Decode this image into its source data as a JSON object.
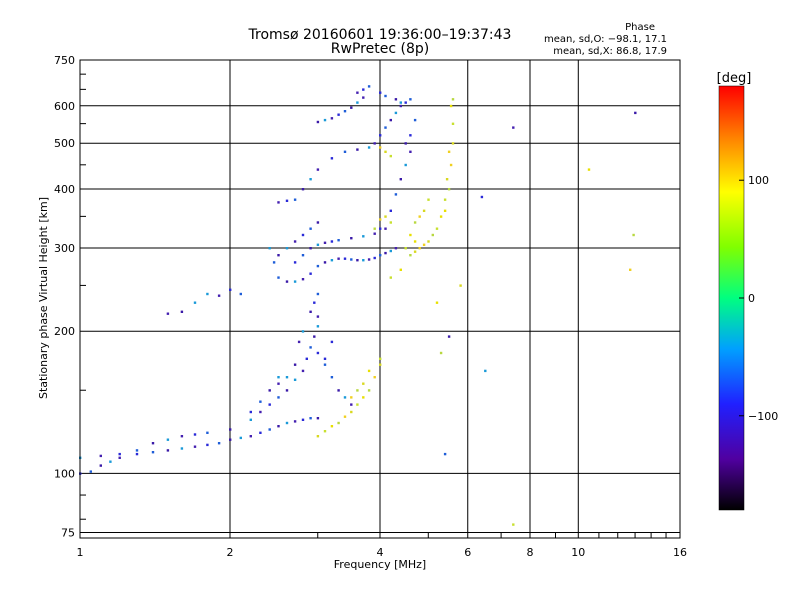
{
  "chart_data": {
    "type": "scatter",
    "title": "Tromsø 20160601 19:36:00–19:37:43",
    "subtitle": "RwPretec (8p)",
    "xlabel": "Frequency [MHz]",
    "ylabel": "Stationary phase Virtual Height [km]",
    "xscale": "log",
    "yscale": "log",
    "xlim": [
      1,
      16
    ],
    "ylim": [
      73,
      750
    ],
    "x_ticks": [
      1,
      2,
      4,
      6,
      8,
      10,
      16
    ],
    "x_tick_labels": [
      "1",
      "2",
      "4",
      "6",
      "8",
      "10",
      "16"
    ],
    "y_ticks": [
      75,
      100,
      200,
      300,
      400,
      500,
      600,
      750
    ],
    "y_tick_labels": [
      "75",
      "100",
      "200",
      "300",
      "400",
      "500",
      "600",
      "750"
    ],
    "grid": true,
    "stats": {
      "heading": "Phase",
      "line_O": "mean, sd,O: −98.1, 17.1",
      "line_X": "mean, sd,X:  86.8, 17.9"
    },
    "colorbar": {
      "label": "[deg]",
      "range": [
        -180,
        180
      ],
      "ticks": [
        100,
        0,
        -100
      ],
      "tick_labels": [
        "100",
        "0",
        "−100"
      ]
    },
    "series": [
      {
        "points": [
          [
            1.0,
            100
          ],
          [
            1.05,
            101
          ],
          [
            1.1,
            104
          ],
          [
            1.15,
            106
          ],
          [
            1.2,
            108
          ],
          [
            1.3,
            110
          ],
          [
            1.4,
            111
          ],
          [
            1.5,
            112
          ],
          [
            1.6,
            113
          ],
          [
            1.7,
            114
          ],
          [
            1.8,
            115
          ],
          [
            1.9,
            116
          ],
          [
            2.0,
            118
          ],
          [
            2.1,
            119
          ],
          [
            2.2,
            120
          ],
          [
            2.3,
            122
          ],
          [
            2.4,
            124
          ],
          [
            2.5,
            126
          ],
          [
            2.6,
            128
          ],
          [
            2.7,
            129
          ],
          [
            2.8,
            130
          ],
          [
            2.9,
            131
          ],
          [
            3.0,
            131
          ],
          [
            1.0,
            108
          ],
          [
            1.1,
            109
          ],
          [
            1.2,
            110
          ],
          [
            1.3,
            112
          ],
          [
            1.4,
            116
          ],
          [
            1.5,
            118
          ],
          [
            1.6,
            120
          ],
          [
            1.7,
            121
          ],
          [
            1.8,
            122
          ],
          [
            2.0,
            124
          ],
          [
            2.2,
            130
          ],
          [
            2.3,
            135
          ],
          [
            2.4,
            140
          ],
          [
            2.5,
            145
          ],
          [
            2.6,
            150
          ],
          [
            2.7,
            158
          ],
          [
            2.8,
            165
          ],
          [
            2.85,
            175
          ],
          [
            2.9,
            185
          ],
          [
            2.95,
            195
          ],
          [
            3.0,
            205
          ],
          [
            3.0,
            215
          ],
          [
            2.95,
            230
          ],
          [
            3.0,
            240
          ],
          [
            2.9,
            220
          ],
          [
            2.8,
            200
          ],
          [
            2.75,
            190
          ],
          [
            3.1,
            175
          ],
          [
            3.2,
            160
          ],
          [
            3.3,
            150
          ],
          [
            3.4,
            145
          ],
          [
            3.5,
            140
          ],
          [
            3.2,
            190
          ],
          [
            3.1,
            170
          ],
          [
            2.7,
            170
          ],
          [
            2.6,
            160
          ],
          [
            2.5,
            155
          ],
          [
            3.0,
            180
          ],
          [
            2.5,
            260
          ],
          [
            2.6,
            255
          ],
          [
            2.7,
            255
          ],
          [
            2.8,
            258
          ],
          [
            2.9,
            265
          ],
          [
            3.0,
            275
          ],
          [
            3.1,
            280
          ],
          [
            3.2,
            283
          ],
          [
            3.3,
            285
          ],
          [
            3.4,
            285
          ],
          [
            3.5,
            284
          ],
          [
            3.6,
            283
          ],
          [
            3.7,
            283
          ],
          [
            3.8,
            284
          ],
          [
            3.9,
            286
          ],
          [
            4.0,
            290
          ],
          [
            4.1,
            293
          ],
          [
            4.2,
            296
          ],
          [
            4.3,
            300
          ],
          [
            2.7,
            280
          ],
          [
            2.8,
            290
          ],
          [
            2.9,
            300
          ],
          [
            3.0,
            305
          ],
          [
            3.1,
            308
          ],
          [
            3.2,
            310
          ],
          [
            3.3,
            312
          ],
          [
            3.5,
            315
          ],
          [
            3.7,
            318
          ],
          [
            3.9,
            322
          ],
          [
            4.0,
            330
          ],
          [
            2.45,
            280
          ],
          [
            2.5,
            290
          ],
          [
            2.6,
            300
          ],
          [
            2.7,
            310
          ],
          [
            2.8,
            320
          ],
          [
            2.9,
            330
          ],
          [
            3.0,
            340
          ],
          [
            2.4,
            300
          ],
          [
            2.5,
            375
          ],
          [
            2.6,
            378
          ],
          [
            2.7,
            380
          ],
          [
            2.8,
            400
          ],
          [
            2.9,
            420
          ],
          [
            3.0,
            440
          ],
          [
            3.2,
            465
          ],
          [
            3.4,
            480
          ],
          [
            3.6,
            485
          ],
          [
            3.8,
            490
          ],
          [
            3.9,
            500
          ],
          [
            4.0,
            520
          ],
          [
            4.1,
            540
          ],
          [
            4.2,
            560
          ],
          [
            4.3,
            580
          ],
          [
            4.4,
            600
          ],
          [
            4.5,
            610
          ],
          [
            4.6,
            620
          ],
          [
            3.0,
            555
          ],
          [
            3.1,
            560
          ],
          [
            3.2,
            565
          ],
          [
            3.3,
            575
          ],
          [
            3.4,
            585
          ],
          [
            3.5,
            595
          ],
          [
            3.6,
            610
          ],
          [
            3.7,
            625
          ],
          [
            4.0,
            640
          ],
          [
            4.1,
            630
          ],
          [
            4.3,
            620
          ],
          [
            4.4,
            610
          ],
          [
            4.1,
            330
          ],
          [
            4.2,
            360
          ],
          [
            4.3,
            390
          ],
          [
            4.4,
            420
          ],
          [
            4.5,
            450
          ],
          [
            4.6,
            480
          ],
          [
            4.6,
            520
          ],
          [
            4.7,
            560
          ],
          [
            4.5,
            500
          ],
          [
            1.8,
            240
          ],
          [
            1.9,
            238
          ],
          [
            2.0,
            245
          ],
          [
            2.1,
            240
          ],
          [
            1.6,
            220
          ],
          [
            1.7,
            230
          ],
          [
            1.5,
            218
          ],
          [
            2.2,
            135
          ],
          [
            2.3,
            142
          ],
          [
            2.4,
            150
          ],
          [
            2.5,
            160
          ],
          [
            3.6,
            640
          ],
          [
            3.7,
            650
          ],
          [
            3.8,
            660
          ],
          [
            5.5,
            195
          ],
          [
            6.5,
            165
          ],
          [
            7.4,
            540
          ],
          [
            6.4,
            385
          ],
          [
            5.4,
            110
          ],
          [
            13.0,
            580
          ]
        ]
      },
      {
        "points": [
          [
            3.0,
            120
          ],
          [
            3.1,
            123
          ],
          [
            3.2,
            126
          ],
          [
            3.3,
            128
          ],
          [
            3.4,
            132
          ],
          [
            3.5,
            135
          ],
          [
            3.6,
            140
          ],
          [
            3.7,
            145
          ],
          [
            3.8,
            150
          ],
          [
            3.9,
            160
          ],
          [
            4.0,
            170
          ],
          [
            4.0,
            175
          ],
          [
            3.8,
            165
          ],
          [
            3.6,
            150
          ],
          [
            3.5,
            145
          ],
          [
            3.7,
            155
          ],
          [
            4.2,
            260
          ],
          [
            4.4,
            270
          ],
          [
            4.6,
            290
          ],
          [
            4.8,
            300
          ],
          [
            5.0,
            310
          ],
          [
            5.2,
            330
          ],
          [
            5.4,
            360
          ],
          [
            5.5,
            400
          ],
          [
            5.55,
            450
          ],
          [
            5.6,
            500
          ],
          [
            5.6,
            550
          ],
          [
            5.55,
            600
          ],
          [
            5.6,
            620
          ],
          [
            5.5,
            480
          ],
          [
            5.45,
            420
          ],
          [
            5.4,
            380
          ],
          [
            5.3,
            350
          ],
          [
            5.1,
            320
          ],
          [
            4.9,
            305
          ],
          [
            4.7,
            295
          ],
          [
            4.5,
            300
          ],
          [
            4.6,
            320
          ],
          [
            4.7,
            340
          ],
          [
            4.8,
            350
          ],
          [
            4.9,
            360
          ],
          [
            5.0,
            380
          ],
          [
            4.7,
            310
          ],
          [
            3.9,
            330
          ],
          [
            4.0,
            345
          ],
          [
            4.1,
            350
          ],
          [
            4.2,
            340
          ],
          [
            5.2,
            230
          ],
          [
            5.3,
            180
          ],
          [
            4.0,
            490
          ],
          [
            4.1,
            480
          ],
          [
            4.2,
            470
          ],
          [
            10.5,
            440
          ],
          [
            12.9,
            320
          ],
          [
            12.7,
            270
          ],
          [
            5.8,
            250
          ],
          [
            7.4,
            78
          ]
        ]
      }
    ]
  }
}
